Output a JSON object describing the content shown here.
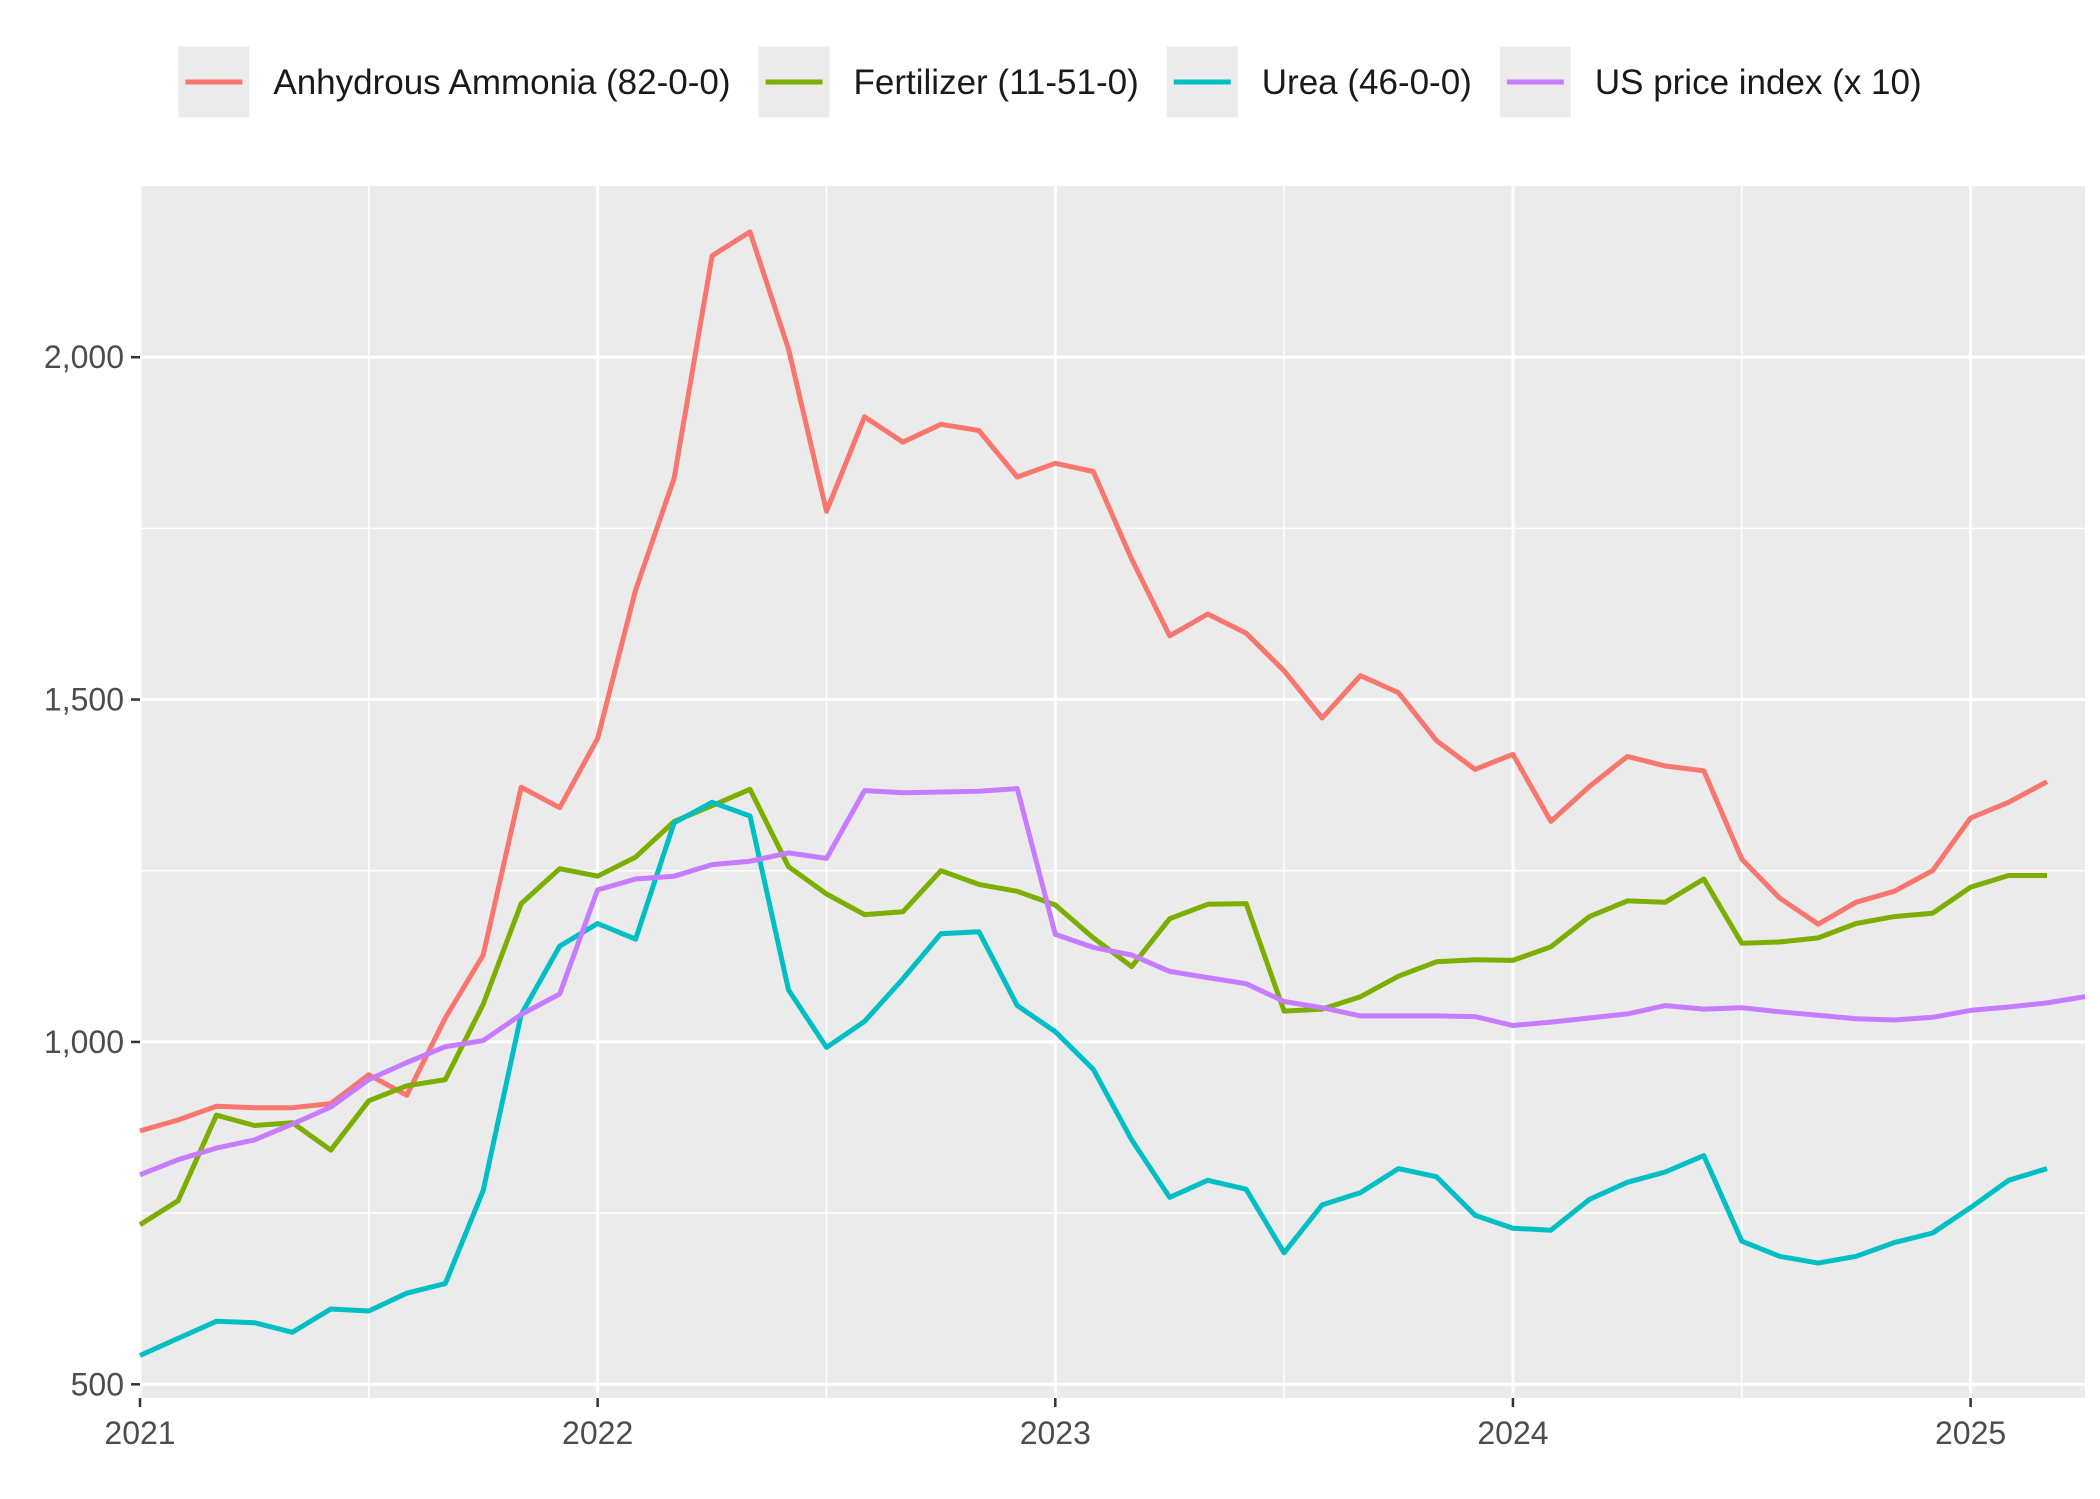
{
  "chart_data": {
    "type": "line",
    "title": "",
    "xlabel": "",
    "ylabel": "",
    "xlim": [
      2021.0,
      2025.25
    ],
    "ylim": [
      480,
      2250
    ],
    "grid": true,
    "legend_position": "top",
    "x_ticks": [
      {
        "value": 2021,
        "label": "2021"
      },
      {
        "value": 2022,
        "label": "2022"
      },
      {
        "value": 2023,
        "label": "2023"
      },
      {
        "value": 2024,
        "label": "2024"
      },
      {
        "value": 2025,
        "label": "2025"
      }
    ],
    "y_ticks": [
      {
        "value": 500,
        "label": "500"
      },
      {
        "value": 1000,
        "label": "1,000"
      },
      {
        "value": 1500,
        "label": "1,500"
      },
      {
        "value": 2000,
        "label": "2,000"
      }
    ],
    "series": [
      {
        "name": "Anhydrous Ammonia (82-0-0)",
        "color": "#F8766D",
        "points": [
          [
            2021.0,
            870
          ],
          [
            2021.083,
            886
          ],
          [
            2021.167,
            906
          ],
          [
            2021.25,
            904
          ],
          [
            2021.333,
            904
          ],
          [
            2021.417,
            910
          ],
          [
            2021.5,
            952
          ],
          [
            2021.583,
            922
          ],
          [
            2021.667,
            1035
          ],
          [
            2021.75,
            1127
          ],
          [
            2021.833,
            1372
          ],
          [
            2021.917,
            1342
          ],
          [
            2022.0,
            1443
          ],
          [
            2022.083,
            1660
          ],
          [
            2022.167,
            1823
          ],
          [
            2022.25,
            2148
          ],
          [
            2022.333,
            2183
          ],
          [
            2022.417,
            2012
          ],
          [
            2022.5,
            1775
          ],
          [
            2022.583,
            1913
          ],
          [
            2022.667,
            1876
          ],
          [
            2022.75,
            1902
          ],
          [
            2022.833,
            1893
          ],
          [
            2022.917,
            1825
          ],
          [
            2023.0,
            1845
          ],
          [
            2023.083,
            1833
          ],
          [
            2023.167,
            1705
          ],
          [
            2023.25,
            1593
          ],
          [
            2023.333,
            1625
          ],
          [
            2023.417,
            1597
          ],
          [
            2023.5,
            1542
          ],
          [
            2023.583,
            1473
          ],
          [
            2023.667,
            1535
          ],
          [
            2023.75,
            1510
          ],
          [
            2023.833,
            1440
          ],
          [
            2023.917,
            1398
          ],
          [
            2024.0,
            1420
          ],
          [
            2024.083,
            1322
          ],
          [
            2024.167,
            1373
          ],
          [
            2024.25,
            1417
          ],
          [
            2024.333,
            1403
          ],
          [
            2024.417,
            1396
          ],
          [
            2024.5,
            1267
          ],
          [
            2024.583,
            1210
          ],
          [
            2024.667,
            1172
          ],
          [
            2024.75,
            1204
          ],
          [
            2024.833,
            1220
          ],
          [
            2024.917,
            1250
          ],
          [
            2025.0,
            1327
          ],
          [
            2025.083,
            1350
          ],
          [
            2025.167,
            1380
          ]
        ]
      },
      {
        "name": "Fertilizer (11-51-0)",
        "color": "#7CAE00",
        "points": [
          [
            2021.0,
            733
          ],
          [
            2021.083,
            768
          ],
          [
            2021.167,
            893
          ],
          [
            2021.25,
            878
          ],
          [
            2021.333,
            882
          ],
          [
            2021.417,
            842
          ],
          [
            2021.5,
            914
          ],
          [
            2021.583,
            936
          ],
          [
            2021.667,
            945
          ],
          [
            2021.75,
            1055
          ],
          [
            2021.833,
            1202
          ],
          [
            2021.917,
            1253
          ],
          [
            2022.0,
            1242
          ],
          [
            2022.083,
            1270
          ],
          [
            2022.167,
            1322
          ],
          [
            2022.25,
            1345
          ],
          [
            2022.333,
            1369
          ],
          [
            2022.417,
            1256
          ],
          [
            2022.5,
            1216
          ],
          [
            2022.583,
            1186
          ],
          [
            2022.667,
            1190
          ],
          [
            2022.75,
            1250
          ],
          [
            2022.833,
            1230
          ],
          [
            2022.917,
            1220
          ],
          [
            2023.0,
            1200
          ],
          [
            2023.083,
            1152
          ],
          [
            2023.167,
            1110
          ],
          [
            2023.25,
            1180
          ],
          [
            2023.333,
            1201
          ],
          [
            2023.417,
            1202
          ],
          [
            2023.5,
            1045
          ],
          [
            2023.583,
            1048
          ],
          [
            2023.667,
            1066
          ],
          [
            2023.75,
            1096
          ],
          [
            2023.833,
            1117
          ],
          [
            2023.917,
            1120
          ],
          [
            2024.0,
            1119
          ],
          [
            2024.083,
            1139
          ],
          [
            2024.167,
            1183
          ],
          [
            2024.25,
            1206
          ],
          [
            2024.333,
            1204
          ],
          [
            2024.417,
            1238
          ],
          [
            2024.5,
            1144
          ],
          [
            2024.583,
            1146
          ],
          [
            2024.667,
            1152
          ],
          [
            2024.75,
            1173
          ],
          [
            2024.833,
            1183
          ],
          [
            2024.917,
            1188
          ],
          [
            2025.0,
            1226
          ],
          [
            2025.083,
            1243
          ],
          [
            2025.167,
            1243
          ]
        ]
      },
      {
        "name": "Urea (46-0-0)",
        "color": "#00BFC4",
        "points": [
          [
            2021.0,
            542
          ],
          [
            2021.083,
            567
          ],
          [
            2021.167,
            592
          ],
          [
            2021.25,
            590
          ],
          [
            2021.333,
            576
          ],
          [
            2021.417,
            610
          ],
          [
            2021.5,
            607
          ],
          [
            2021.583,
            633
          ],
          [
            2021.667,
            647
          ],
          [
            2021.75,
            783
          ],
          [
            2021.833,
            1040
          ],
          [
            2021.917,
            1140
          ],
          [
            2022.0,
            1173
          ],
          [
            2022.083,
            1150
          ],
          [
            2022.167,
            1320
          ],
          [
            2022.25,
            1350
          ],
          [
            2022.333,
            1330
          ],
          [
            2022.417,
            1076
          ],
          [
            2022.5,
            992
          ],
          [
            2022.583,
            1030
          ],
          [
            2022.667,
            1092
          ],
          [
            2022.75,
            1158
          ],
          [
            2022.833,
            1161
          ],
          [
            2022.917,
            1053
          ],
          [
            2023.0,
            1015
          ],
          [
            2023.083,
            960
          ],
          [
            2023.167,
            857
          ],
          [
            2023.25,
            773
          ],
          [
            2023.333,
            798
          ],
          [
            2023.417,
            785
          ],
          [
            2023.5,
            692
          ],
          [
            2023.583,
            762
          ],
          [
            2023.667,
            780
          ],
          [
            2023.75,
            815
          ],
          [
            2023.833,
            803
          ],
          [
            2023.917,
            747
          ],
          [
            2024.0,
            728
          ],
          [
            2024.083,
            725
          ],
          [
            2024.167,
            770
          ],
          [
            2024.25,
            795
          ],
          [
            2024.333,
            810
          ],
          [
            2024.417,
            834
          ],
          [
            2024.5,
            709
          ],
          [
            2024.583,
            687
          ],
          [
            2024.667,
            677
          ],
          [
            2024.75,
            687
          ],
          [
            2024.833,
            707
          ],
          [
            2024.917,
            721
          ],
          [
            2025.0,
            758
          ],
          [
            2025.083,
            798
          ],
          [
            2025.167,
            815
          ]
        ]
      },
      {
        "name": "US price index (x 10)",
        "color": "#C77CFF",
        "points": [
          [
            2021.0,
            806
          ],
          [
            2021.083,
            828
          ],
          [
            2021.167,
            845
          ],
          [
            2021.25,
            857
          ],
          [
            2021.333,
            880
          ],
          [
            2021.417,
            905
          ],
          [
            2021.5,
            945
          ],
          [
            2021.583,
            970
          ],
          [
            2021.667,
            993
          ],
          [
            2021.75,
            1002
          ],
          [
            2021.833,
            1040
          ],
          [
            2021.917,
            1070
          ],
          [
            2022.0,
            1222
          ],
          [
            2022.083,
            1238
          ],
          [
            2022.167,
            1242
          ],
          [
            2022.25,
            1259
          ],
          [
            2022.333,
            1264
          ],
          [
            2022.417,
            1276
          ],
          [
            2022.5,
            1268
          ],
          [
            2022.583,
            1367
          ],
          [
            2022.667,
            1364
          ],
          [
            2022.75,
            1365
          ],
          [
            2022.833,
            1366
          ],
          [
            2022.917,
            1370
          ],
          [
            2023.0,
            1157
          ],
          [
            2023.083,
            1138
          ],
          [
            2023.167,
            1127
          ],
          [
            2023.25,
            1103
          ],
          [
            2023.333,
            1094
          ],
          [
            2023.417,
            1085
          ],
          [
            2023.5,
            1059
          ],
          [
            2023.583,
            1050
          ],
          [
            2023.667,
            1038
          ],
          [
            2023.75,
            1038
          ],
          [
            2023.833,
            1038
          ],
          [
            2023.917,
            1037
          ],
          [
            2024.0,
            1024
          ],
          [
            2024.083,
            1029
          ],
          [
            2024.167,
            1035
          ],
          [
            2024.25,
            1041
          ],
          [
            2024.333,
            1053
          ],
          [
            2024.417,
            1048
          ],
          [
            2024.5,
            1050
          ],
          [
            2024.583,
            1044
          ],
          [
            2024.667,
            1039
          ],
          [
            2024.75,
            1034
          ],
          [
            2024.833,
            1032
          ],
          [
            2024.917,
            1036
          ],
          [
            2025.0,
            1046
          ],
          [
            2025.083,
            1051
          ],
          [
            2025.167,
            1057
          ],
          [
            2025.25,
            1066
          ]
        ]
      }
    ]
  }
}
